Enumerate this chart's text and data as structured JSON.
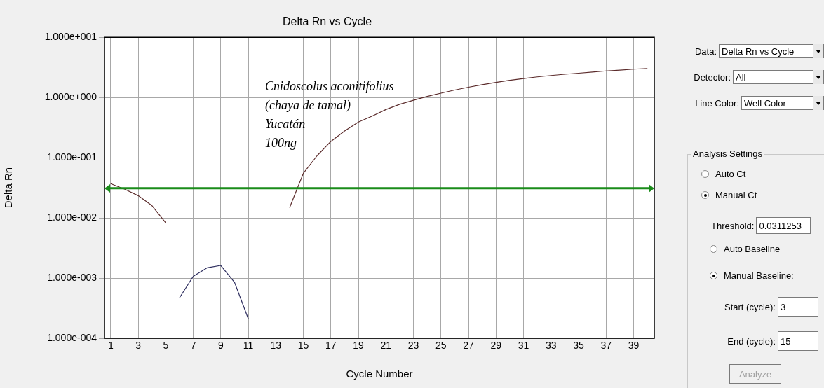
{
  "chart_data": {
    "type": "line",
    "title": "Delta Rn vs Cycle",
    "xlabel": "Cycle Number",
    "ylabel": "Delta Rn",
    "log": "y",
    "grid": true,
    "legend": false,
    "marker": "none",
    "line_style": "solid",
    "xlim": [
      0.55,
      40.5
    ],
    "xticks": [
      1,
      3,
      5,
      7,
      9,
      11,
      13,
      15,
      17,
      19,
      21,
      23,
      25,
      27,
      29,
      31,
      33,
      35,
      37,
      39
    ],
    "ylim": [
      0.0001,
      10
    ],
    "yticks": [
      {
        "value": 0.0001,
        "label": "1.000e-004"
      },
      {
        "value": 0.001,
        "label": "1.000e-003"
      },
      {
        "value": 0.01,
        "label": "1.000e-002"
      },
      {
        "value": 0.1,
        "label": "1.000e-001"
      },
      {
        "value": 1,
        "label": "1.000e+000"
      },
      {
        "value": 10,
        "label": "1.000e+001"
      }
    ],
    "series": [
      {
        "color": "#5b2b2b",
        "x": [
          1,
          2,
          3,
          4,
          5,
          6,
          7,
          8,
          9,
          10,
          11,
          12,
          13,
          14,
          15,
          16,
          17,
          18,
          19,
          20,
          21,
          22,
          23,
          24,
          25,
          26,
          27,
          28,
          29,
          30,
          31,
          32,
          33,
          34,
          35,
          36,
          37,
          38,
          39,
          40
        ],
        "values": [
          0.037,
          0.03,
          0.0234,
          0.016,
          0.0083,
          null,
          null,
          null,
          null,
          null,
          null,
          null,
          null,
          0.0148,
          0.055,
          0.108,
          0.186,
          0.277,
          0.39,
          0.49,
          0.63,
          0.77,
          0.9,
          1.04,
          1.18,
          1.33,
          1.48,
          1.63,
          1.78,
          1.93,
          2.06,
          2.2,
          2.32,
          2.43,
          2.53,
          2.65,
          2.76,
          2.85,
          2.95,
          3.03
        ]
      },
      {
        "color": "#2a2a5c",
        "x": [
          6,
          7,
          8,
          9,
          10,
          11
        ],
        "values": [
          0.00047,
          0.00107,
          0.00148,
          0.00162,
          0.00085,
          0.00021
        ]
      }
    ],
    "ref_lines": [
      {
        "axis": "y",
        "value": 0.031,
        "color": "#1a8c1a",
        "line_style": "solid"
      }
    ],
    "annotations": [
      "Cnidoscolus aconitifolius\n(chaya de tamal)\nYucatán\n100ng",
      "Data:",
      "Delta Rn vs Cycle",
      "Detector:",
      "All",
      "Line Color:",
      "Well Color",
      "Analysis Settings",
      "Auto Ct",
      "Manual Ct",
      "Auto Baseline",
      "Manual Baseline:",
      "Start (cycle):",
      "3",
      "End (cycle):",
      "15",
      "Analyze",
      "Threshold:",
      "0.0311253"
    ]
  }
}
